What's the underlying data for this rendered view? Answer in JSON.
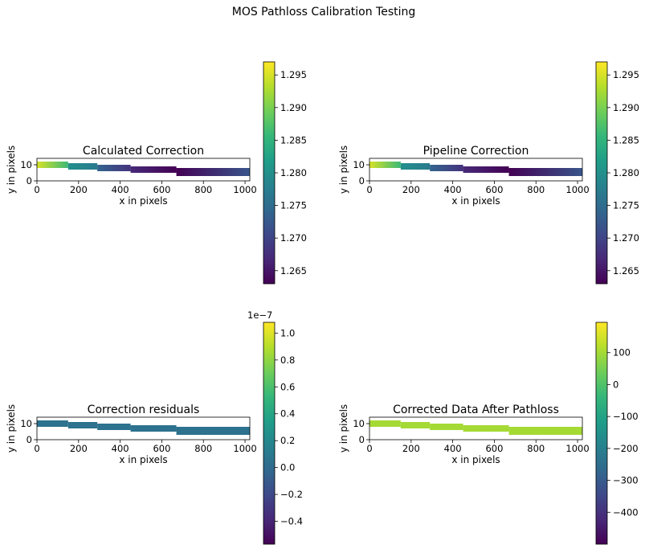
{
  "figure": {
    "suptitle": "MOS Pathloss Calibration Testing"
  },
  "colors": {
    "viridis": [
      "#440154",
      "#482878",
      "#3e4989",
      "#31688e",
      "#26828e",
      "#1f9e89",
      "#35b779",
      "#6ece58",
      "#b5de2b",
      "#fde725"
    ]
  },
  "chart_data": [
    {
      "type": "heatmap",
      "title": "Calculated Correction",
      "xlabel": "x in pixels",
      "ylabel": "y in pixels",
      "xlim": [
        0,
        1023
      ],
      "ylim": [
        0,
        14
      ],
      "xticks": [
        "0",
        "200",
        "400",
        "600",
        "800",
        "1000"
      ],
      "xtick_values": [
        0,
        200,
        400,
        600,
        800,
        1000
      ],
      "yticks": [
        "0",
        "10"
      ],
      "ytick_values": [
        0,
        10
      ],
      "clim": [
        1.263,
        1.297
      ],
      "colorbar": {
        "ticks": [
          "1.265",
          "1.270",
          "1.275",
          "1.280",
          "1.285",
          "1.290",
          "1.295"
        ],
        "tick_values": [
          1.265,
          1.27,
          1.275,
          1.28,
          1.285,
          1.29,
          1.295
        ],
        "offset": ""
      },
      "segments": [
        {
          "x": [
            0,
            150
          ],
          "y": [
            8,
            12
          ],
          "values": [
            1.295,
            1.286
          ]
        },
        {
          "x": [
            150,
            290
          ],
          "y": [
            7,
            11
          ],
          "values": [
            1.28,
            1.277
          ]
        },
        {
          "x": [
            290,
            450
          ],
          "y": [
            6,
            10
          ],
          "values": [
            1.274,
            1.268
          ]
        },
        {
          "x": [
            450,
            670
          ],
          "y": [
            5,
            9
          ],
          "values": [
            1.267,
            1.263
          ]
        },
        {
          "x": [
            670,
            1023
          ],
          "y": [
            3,
            8
          ],
          "values": [
            1.263,
            1.272
          ]
        }
      ]
    },
    {
      "type": "heatmap",
      "title": "Pipeline Correction",
      "xlabel": "x in pixels",
      "ylabel": "y in pixels",
      "xlim": [
        0,
        1023
      ],
      "ylim": [
        0,
        14
      ],
      "xticks": [
        "0",
        "200",
        "400",
        "600",
        "800",
        "1000"
      ],
      "xtick_values": [
        0,
        200,
        400,
        600,
        800,
        1000
      ],
      "yticks": [
        "0",
        "10"
      ],
      "ytick_values": [
        0,
        10
      ],
      "clim": [
        1.263,
        1.297
      ],
      "colorbar": {
        "ticks": [
          "1.265",
          "1.270",
          "1.275",
          "1.280",
          "1.285",
          "1.290",
          "1.295"
        ],
        "tick_values": [
          1.265,
          1.27,
          1.275,
          1.28,
          1.285,
          1.29,
          1.295
        ],
        "offset": ""
      },
      "segments": [
        {
          "x": [
            0,
            150
          ],
          "y": [
            8,
            12
          ],
          "values": [
            1.295,
            1.286
          ]
        },
        {
          "x": [
            150,
            290
          ],
          "y": [
            7,
            11
          ],
          "values": [
            1.28,
            1.277
          ]
        },
        {
          "x": [
            290,
            450
          ],
          "y": [
            6,
            10
          ],
          "values": [
            1.274,
            1.268
          ]
        },
        {
          "x": [
            450,
            670
          ],
          "y": [
            5,
            9
          ],
          "values": [
            1.267,
            1.263
          ]
        },
        {
          "x": [
            670,
            1023
          ],
          "y": [
            3,
            8
          ],
          "values": [
            1.263,
            1.272
          ]
        }
      ]
    },
    {
      "type": "heatmap",
      "title": "Correction residuals",
      "xlabel": "x in pixels",
      "ylabel": "y in pixels",
      "xlim": [
        0,
        1023
      ],
      "ylim": [
        0,
        14
      ],
      "xticks": [
        "0",
        "200",
        "400",
        "600",
        "800",
        "1000"
      ],
      "xtick_values": [
        0,
        200,
        400,
        600,
        800,
        1000
      ],
      "yticks": [
        "0",
        "10"
      ],
      "ytick_values": [
        0,
        10
      ],
      "clim": [
        -0.57,
        1.08
      ],
      "colorbar": {
        "ticks": [
          "−0.4",
          "−0.2",
          "0.0",
          "0.2",
          "0.4",
          "0.6",
          "0.8",
          "1.0"
        ],
        "tick_values": [
          -0.4,
          -0.2,
          0,
          0.2,
          0.4,
          0.6,
          0.8,
          1.0
        ],
        "offset": "1e−7"
      },
      "segments": [
        {
          "x": [
            0,
            150
          ],
          "y": [
            8,
            12
          ],
          "values": [
            0.05,
            0.05
          ]
        },
        {
          "x": [
            150,
            290
          ],
          "y": [
            7,
            11
          ],
          "values": [
            0.05,
            0.05
          ]
        },
        {
          "x": [
            290,
            450
          ],
          "y": [
            6,
            10
          ],
          "values": [
            0.05,
            0.05
          ]
        },
        {
          "x": [
            450,
            670
          ],
          "y": [
            5,
            9
          ],
          "values": [
            0.05,
            0.05
          ]
        },
        {
          "x": [
            670,
            1023
          ],
          "y": [
            3,
            8
          ],
          "values": [
            0.05,
            0.05
          ]
        }
      ]
    },
    {
      "type": "heatmap",
      "title": "Corrected Data After Pathloss",
      "xlabel": "x in pixels",
      "ylabel": "y in pixels",
      "xlim": [
        0,
        1023
      ],
      "ylim": [
        0,
        14
      ],
      "xticks": [
        "0",
        "200",
        "400",
        "600",
        "800",
        "1000"
      ],
      "xtick_values": [
        0,
        200,
        400,
        600,
        800,
        1000
      ],
      "yticks": [
        "0",
        "10"
      ],
      "ytick_values": [
        0,
        10
      ],
      "clim": [
        -500,
        195
      ],
      "colorbar": {
        "ticks": [
          "−400",
          "−300",
          "−200",
          "−100",
          "0",
          "100"
        ],
        "tick_values": [
          -400,
          -300,
          -200,
          -100,
          0,
          100
        ],
        "offset": ""
      },
      "segments": [
        {
          "x": [
            0,
            150
          ],
          "y": [
            8,
            12
          ],
          "values": [
            100,
            100
          ]
        },
        {
          "x": [
            150,
            290
          ],
          "y": [
            7,
            11
          ],
          "values": [
            100,
            100
          ]
        },
        {
          "x": [
            290,
            450
          ],
          "y": [
            6,
            10
          ],
          "values": [
            100,
            100
          ]
        },
        {
          "x": [
            450,
            670
          ],
          "y": [
            5,
            9
          ],
          "values": [
            100,
            100
          ]
        },
        {
          "x": [
            670,
            1023
          ],
          "y": [
            3,
            8
          ],
          "values": [
            100,
            100
          ]
        }
      ]
    }
  ]
}
